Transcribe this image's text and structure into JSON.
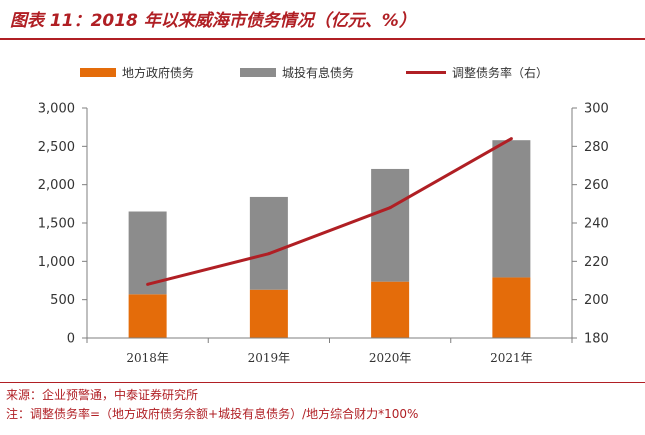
{
  "title": "图表 11：2018 年以来威海市债务情况（亿元、%）",
  "source": "来源：企业预警通，中泰证券研究所",
  "note": "注：调整债务率=（地方政府债务余额+城投有息债务）/地方综合财力*100%",
  "colors": {
    "accent": "#b01f24",
    "local_gov_debt": "#e46c0a",
    "chengtou_debt": "#8c8c8c",
    "ratio_line": "#b01f24"
  },
  "chart_data": {
    "type": "bar",
    "stacked": true,
    "categories": [
      "2018年",
      "2019年",
      "2020年",
      "2021年"
    ],
    "series": [
      {
        "name": "地方政府债务",
        "axis": "left",
        "values": [
          570,
          630,
          735,
          790
        ]
      },
      {
        "name": "城投有息债务",
        "axis": "left",
        "values": [
          1080,
          1210,
          1470,
          1790
        ]
      },
      {
        "name": "调整债务率（右）",
        "axis": "right",
        "type": "line",
        "values": [
          208,
          224,
          248,
          284
        ]
      }
    ],
    "y_left": {
      "min": 0,
      "max": 3000,
      "step": 500,
      "tick_labels": [
        "0",
        "500",
        "1,000",
        "1,500",
        "2,000",
        "2,500",
        "3,000"
      ]
    },
    "y_right": {
      "min": 180,
      "max": 300,
      "step": 20,
      "tick_labels": [
        "180",
        "200",
        "220",
        "240",
        "260",
        "280",
        "300"
      ]
    },
    "legend_position": "top",
    "grid": false
  }
}
